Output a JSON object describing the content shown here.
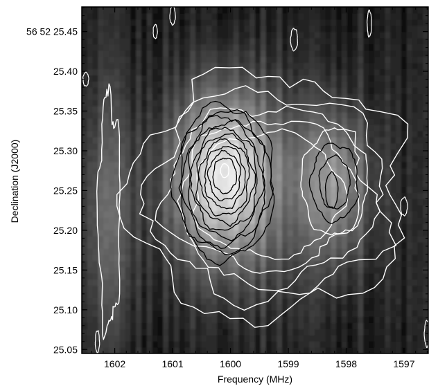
{
  "chart_data": {
    "type": "heatmap",
    "title": "",
    "xlabel": "Frequency (MHz)",
    "ylabel": "Declination (J2000)",
    "x_axis_reversed": true,
    "xlim": [
      1602.57,
      1596.58
    ],
    "ylim": [
      25.045,
      25.481
    ],
    "x_ticks": [
      1602,
      1601,
      1600,
      1599,
      1598,
      1597
    ],
    "x_tick_labels": [
      "1602",
      "1601",
      "1600",
      "1599",
      "1598",
      "1597"
    ],
    "y_ticks": [
      25.05,
      25.1,
      25.15,
      25.2,
      25.25,
      25.3,
      25.35,
      25.4,
      25.45
    ],
    "y_tick_labels": [
      "25.05",
      "25.10",
      "25.15",
      "25.20",
      "25.25",
      "25.30",
      "25.35",
      "25.40",
      "56 52 25.45"
    ],
    "grid": false,
    "colormap": "grayscale",
    "emission_components": [
      {
        "freq_mhz": 1600.1,
        "dec": 25.27,
        "relative_peak": 1.0
      },
      {
        "freq_mhz": 1598.2,
        "dec": 25.26,
        "relative_peak": 0.55
      },
      {
        "freq_mhz": 1602.1,
        "dec": 25.22,
        "relative_peak": 0.32
      }
    ],
    "contours": {
      "white_levels": 5,
      "black_levels": 10,
      "white_color": "#ffffff",
      "black_color": "#000000"
    }
  }
}
